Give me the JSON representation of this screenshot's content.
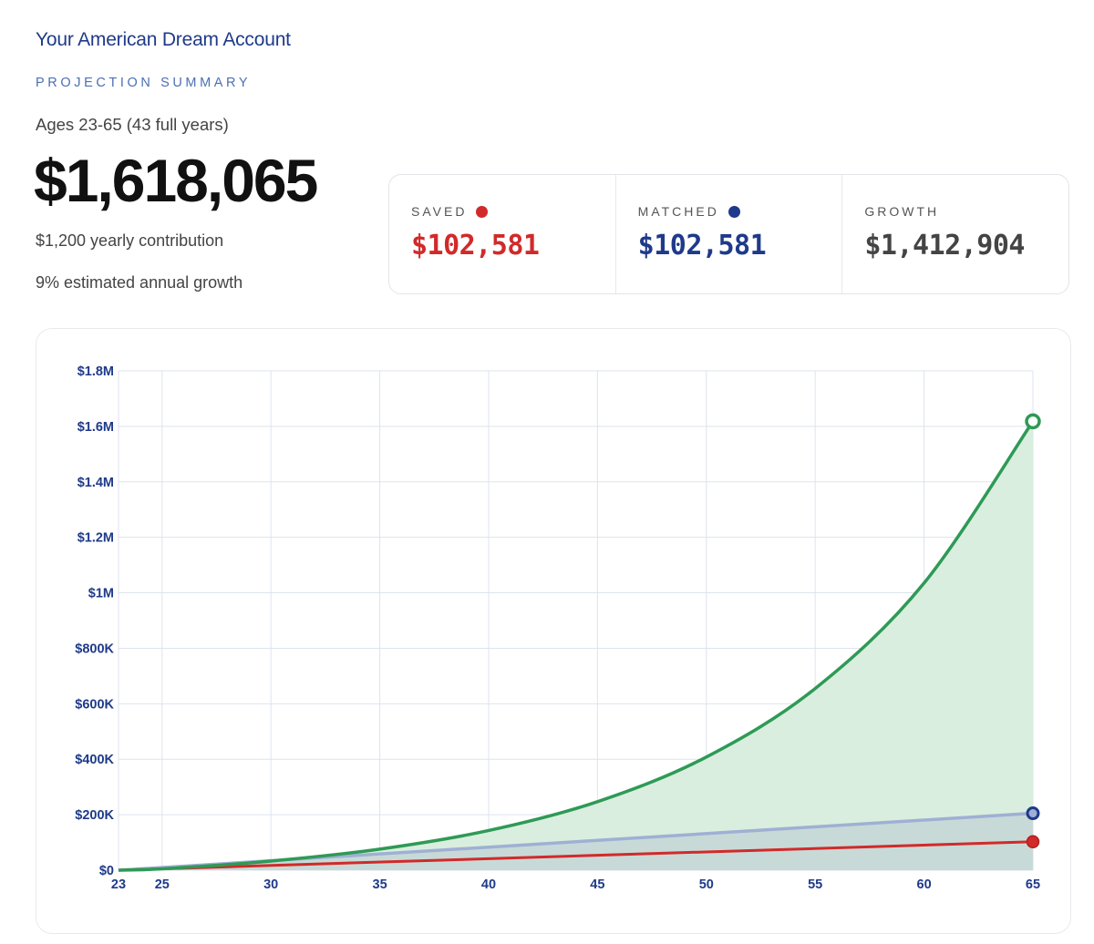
{
  "header": {
    "title": "Your American Dream Account",
    "eyebrow": "PROJECTION SUMMARY",
    "ages": "Ages 23-65 (43 full years)",
    "total": "$1,618,065",
    "contribution": "$1,200 yearly contribution",
    "growth_rate": "9% estimated annual growth"
  },
  "stats": {
    "saved": {
      "label": "SAVED",
      "value": "$102,581",
      "color": "#d12a2a"
    },
    "matched": {
      "label": "MATCHED",
      "value": "$102,581",
      "color": "#1f3a8a"
    },
    "growth": {
      "label": "GROWTH",
      "value": "$1,412,904",
      "color": "#444444"
    }
  },
  "colors": {
    "total_line": "#2e9a56",
    "total_fill": "#d9eedf",
    "matched_line": "#9fb0d4",
    "matched_fill": "#c4d6d6",
    "saved_line": "#d12a2a",
    "axis_text": "#1f3a8a",
    "grid": "#dde3ee"
  },
  "chart_data": {
    "type": "area",
    "xlim": [
      23,
      65
    ],
    "ylim": [
      0,
      1800000
    ],
    "x_ticks": [
      23,
      25,
      30,
      35,
      40,
      45,
      50,
      55,
      60,
      65
    ],
    "x_tick_labels": [
      "23",
      "25",
      "30",
      "35",
      "40",
      "45",
      "50",
      "55",
      "60",
      "65"
    ],
    "y_ticks": [
      0,
      200000,
      400000,
      600000,
      800000,
      1000000,
      1200000,
      1400000,
      1600000,
      1800000
    ],
    "y_tick_labels": [
      "$0",
      "$200K",
      "$400K",
      "$600K",
      "$800K",
      "$1M",
      "$1.2M",
      "$1.4M",
      "$1.6M",
      "$1.8M"
    ],
    "grid": true,
    "series": [
      {
        "key": "total",
        "x": [
          23,
          25,
          30,
          35,
          40,
          45,
          50,
          55,
          60,
          65
        ],
        "values": [
          0,
          5000,
          33000,
          76000,
          143000,
          247000,
          408000,
          655000,
          1035000,
          1618065
        ]
      },
      {
        "key": "matched",
        "x": [
          23,
          65
        ],
        "values": [
          0,
          205162
        ]
      },
      {
        "key": "saved",
        "x": [
          23,
          65
        ],
        "values": [
          0,
          102581
        ]
      }
    ]
  }
}
